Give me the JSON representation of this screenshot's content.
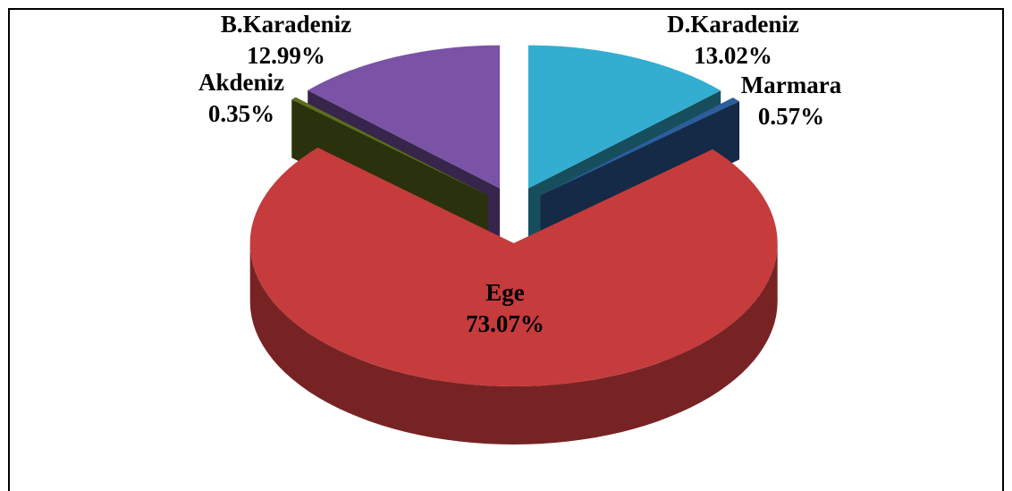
{
  "chart_data": {
    "type": "pie3d",
    "categories": [
      "D.Karadeniz",
      "Marmara",
      "Ege",
      "Akdeniz",
      "B.Karadeniz"
    ],
    "values": [
      13.02,
      0.57,
      73.07,
      0.35,
      12.99
    ],
    "value_labels": [
      "13.02%",
      "0.57%",
      "73.07%",
      "0.35%",
      "12.99%"
    ],
    "colors": [
      "#33aed0",
      "#2d5e9c",
      "#c63b3c",
      "#5b6e1c",
      "#7a53a6"
    ]
  }
}
